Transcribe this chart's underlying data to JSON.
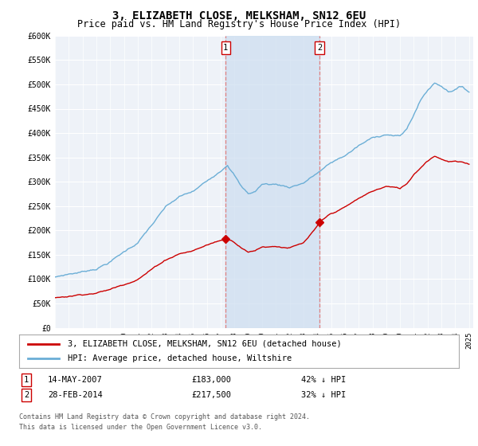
{
  "title": "3, ELIZABETH CLOSE, MELKSHAM, SN12 6EU",
  "subtitle": "Price paid vs. HM Land Registry's House Price Index (HPI)",
  "title_fontsize": 10,
  "subtitle_fontsize": 8.5,
  "ylim": [
    0,
    600000
  ],
  "yticks": [
    0,
    50000,
    100000,
    150000,
    200000,
    250000,
    300000,
    350000,
    400000,
    450000,
    500000,
    550000,
    600000
  ],
  "ytick_labels": [
    "£0",
    "£50K",
    "£100K",
    "£150K",
    "£200K",
    "£250K",
    "£300K",
    "£350K",
    "£400K",
    "£450K",
    "£500K",
    "£550K",
    "£600K"
  ],
  "hpi_color": "#6baed6",
  "property_color": "#cc0000",
  "sale1_date": 2007.37,
  "sale1_price": 183000,
  "sale1_label": "1",
  "sale1_text": "14-MAY-2007",
  "sale1_pct": "42% ↓ HPI",
  "sale2_date": 2014.16,
  "sale2_price": 217500,
  "sale2_label": "2",
  "sale2_text": "28-FEB-2014",
  "sale2_pct": "32% ↓ HPI",
  "legend_entry1": "3, ELIZABETH CLOSE, MELKSHAM, SN12 6EU (detached house)",
  "legend_entry2": "HPI: Average price, detached house, Wiltshire",
  "footer1": "Contains HM Land Registry data © Crown copyright and database right 2024.",
  "footer2": "This data is licensed under the Open Government Licence v3.0.",
  "background_color": "#ffffff",
  "plot_bg_color": "#eef2f8",
  "shade_color": "#ccddf0",
  "grid_color": "#ffffff"
}
